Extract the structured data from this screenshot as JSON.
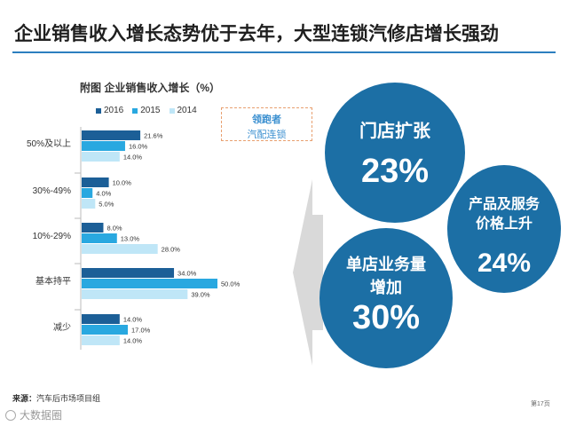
{
  "header": {
    "title": "企业销售收入增长态势优于去年，大型连锁汽修店增长强劲"
  },
  "colors": {
    "accent": "#2c7fbf",
    "s2016": "#1c5f97",
    "s2015": "#29a8e0",
    "s2014": "#bfe6f7",
    "circle": "#1c6fa5",
    "callout_border": "#e8a070"
  },
  "chart_data": {
    "type": "bar",
    "orientation": "horizontal",
    "title": "附图  企业销售收入增长（%）",
    "categories": [
      "50%及以上",
      "30%-49%",
      "10%-29%",
      "基本持平",
      "减少"
    ],
    "series": [
      {
        "name": "2016",
        "values": [
          21.6,
          10.0,
          8.0,
          34.0,
          14.0
        ],
        "labels": [
          "21.6%",
          "10.0%",
          "8.0%",
          "34.0%",
          "14.0%"
        ]
      },
      {
        "name": "2015",
        "values": [
          16.0,
          4.0,
          13.0,
          50.0,
          17.0
        ],
        "labels": [
          "16.0%",
          "4.0%",
          "13.0%",
          "50.0%",
          "17.0%"
        ]
      },
      {
        "name": "2014",
        "values": [
          14.0,
          5.0,
          28.0,
          39.0,
          14.0
        ],
        "labels": [
          "14.0%",
          "5.0%",
          "28.0%",
          "39.0%",
          "14.0%"
        ]
      }
    ],
    "xlim": [
      0,
      50
    ],
    "legend_position": "top",
    "grid": false
  },
  "legend": {
    "items": [
      {
        "label": "2016"
      },
      {
        "label": "2015"
      },
      {
        "label": "2014"
      }
    ]
  },
  "callout": {
    "title": "领跑者",
    "subtitle": "汽配连锁"
  },
  "circles": [
    {
      "label": "门店扩张",
      "value": "23%"
    },
    {
      "label_line1": "产品及服务",
      "label_line2": "价格上升",
      "value": "24%"
    },
    {
      "label_line1": "单店业务量",
      "label_line2": "增加",
      "value": "30%"
    }
  ],
  "footer": {
    "source_label": "来源：",
    "source_text": "汽车后市场项目组",
    "page": "第17页",
    "watermark": "大数据圈"
  }
}
